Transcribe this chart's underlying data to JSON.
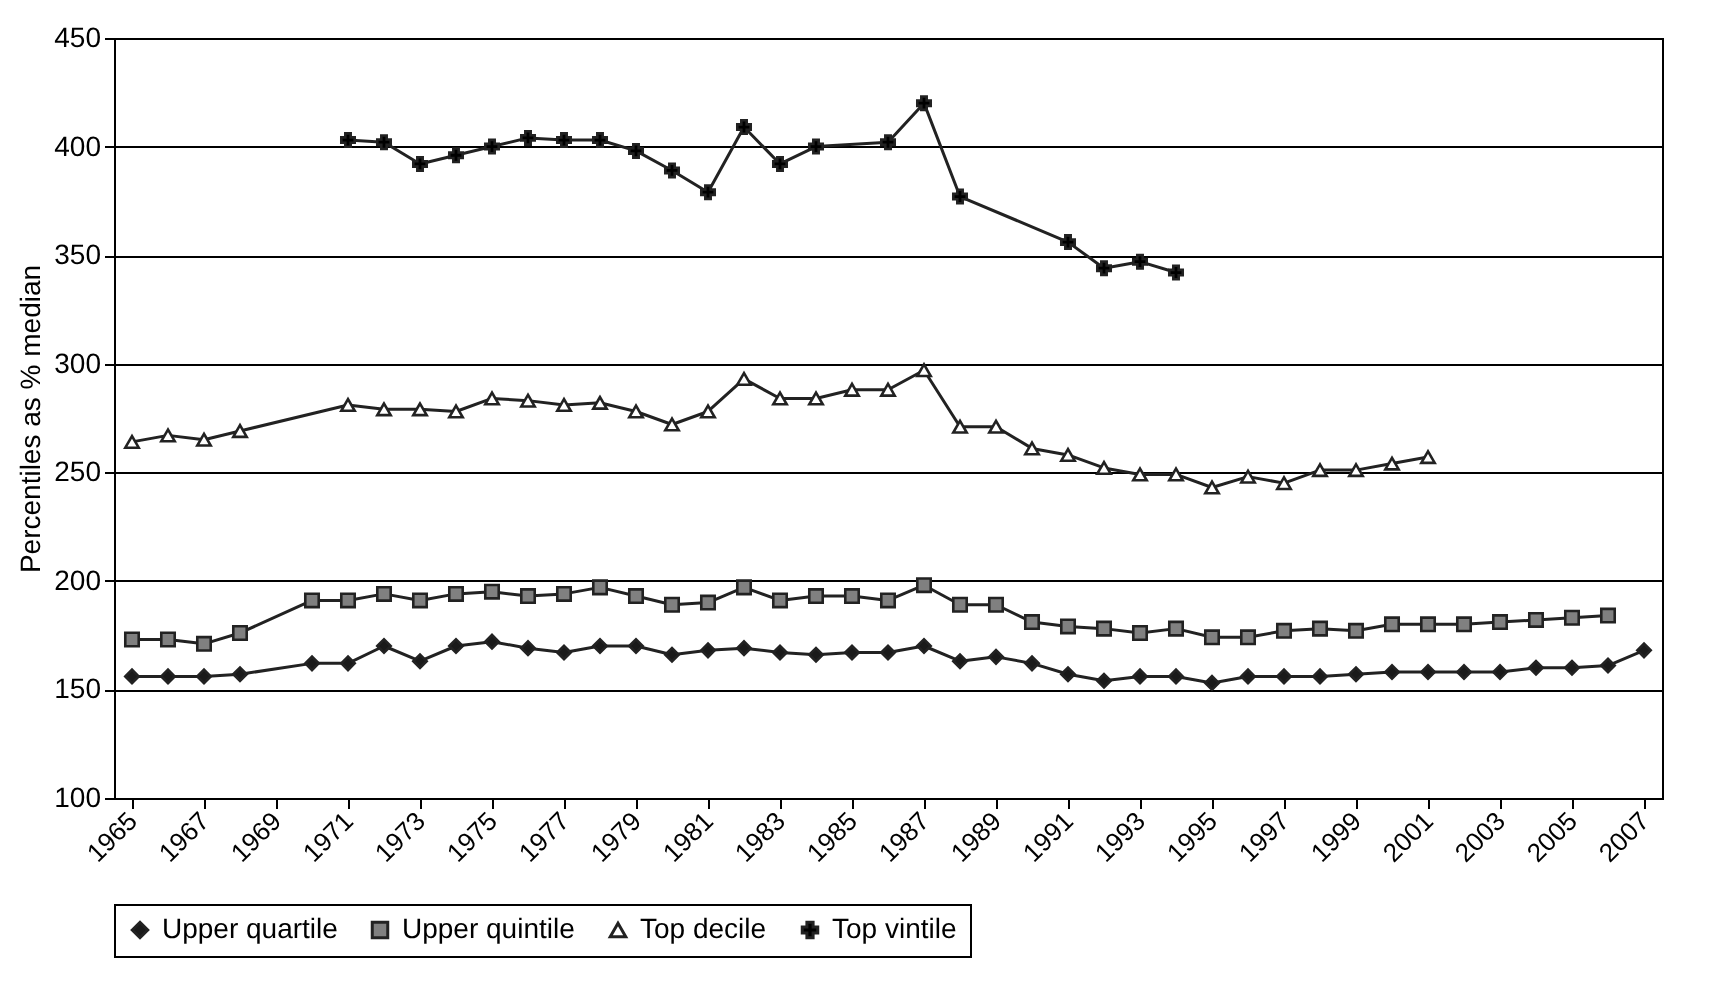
{
  "chart_data": {
    "type": "line",
    "ylabel": "Percentiles as % median",
    "xlim": [
      1964.5,
      2007.5
    ],
    "xticks": [
      1965,
      1967,
      1969,
      1971,
      1973,
      1975,
      1977,
      1979,
      1981,
      1983,
      1985,
      1987,
      1989,
      1991,
      1993,
      1995,
      1997,
      1999,
      2001,
      2003,
      2005,
      2007
    ],
    "ylim": [
      100,
      450
    ],
    "yticks": [
      100,
      150,
      200,
      250,
      300,
      350,
      400,
      450
    ],
    "grid": "y",
    "legend": "bottom",
    "series": [
      {
        "name": "Upper quartile",
        "color": "#1a1a1a",
        "marker": "diamond",
        "x": [
          1965,
          1966,
          1967,
          1968,
          1970,
          1971,
          1972,
          1973,
          1974,
          1975,
          1976,
          1977,
          1978,
          1979,
          1980,
          1981,
          1982,
          1983,
          1984,
          1985,
          1986,
          1987,
          1988,
          1989,
          1990,
          1991,
          1992,
          1993,
          1994,
          1995,
          1996,
          1997,
          1998,
          1999,
          2000,
          2001,
          2002,
          2003,
          2004,
          2005,
          2006,
          2007
        ],
        "values": [
          156,
          156,
          156,
          157,
          162,
          162,
          170,
          163,
          170,
          172,
          169,
          167,
          170,
          170,
          166,
          168,
          169,
          167,
          166,
          167,
          167,
          170,
          163,
          165,
          162,
          157,
          154,
          156,
          156,
          153,
          156,
          156,
          156,
          157,
          158,
          158,
          158,
          158,
          160,
          160,
          161,
          168
        ]
      },
      {
        "name": "Upper quintile",
        "color": "#808080",
        "marker": "square",
        "x": [
          1965,
          1966,
          1967,
          1968,
          1970,
          1971,
          1972,
          1973,
          1974,
          1975,
          1976,
          1977,
          1978,
          1979,
          1980,
          1981,
          1982,
          1983,
          1984,
          1985,
          1986,
          1987,
          1988,
          1989,
          1990,
          1991,
          1992,
          1993,
          1994,
          1995,
          1996,
          1997,
          1998,
          1999,
          2000,
          2001,
          2002,
          2003,
          2004,
          2005,
          2006
        ],
        "values": [
          173,
          173,
          171,
          176,
          191,
          191,
          194,
          191,
          194,
          195,
          193,
          194,
          197,
          193,
          189,
          190,
          197,
          191,
          193,
          193,
          191,
          198,
          189,
          189,
          181,
          179,
          178,
          176,
          178,
          174,
          174,
          177,
          178,
          177,
          180,
          180,
          180,
          181,
          182,
          183,
          184
        ]
      },
      {
        "name": "Top decile",
        "color": "#ffffff",
        "marker": "triangle",
        "x": [
          1965,
          1966,
          1967,
          1968,
          1971,
          1972,
          1973,
          1974,
          1975,
          1976,
          1977,
          1978,
          1979,
          1980,
          1981,
          1982,
          1983,
          1984,
          1985,
          1986,
          1987,
          1988,
          1989,
          1990,
          1991,
          1992,
          1993,
          1994,
          1995,
          1996,
          1997,
          1998,
          1999,
          2000,
          2001
        ],
        "values": [
          264,
          267,
          265,
          269,
          281,
          279,
          279,
          278,
          284,
          283,
          281,
          282,
          278,
          272,
          278,
          293,
          284,
          284,
          288,
          288,
          297,
          271,
          271,
          261,
          258,
          252,
          249,
          249,
          243,
          248,
          245,
          251,
          251,
          254,
          257
        ]
      },
      {
        "name": "Top vintile",
        "color": "#000000",
        "marker": "cross",
        "x": [
          1971,
          1972,
          1973,
          1974,
          1975,
          1976,
          1977,
          1978,
          1979,
          1980,
          1981,
          1982,
          1983,
          1984,
          1986,
          1987,
          1988,
          1991,
          1992,
          1993,
          1994
        ],
        "values": [
          403,
          402,
          392,
          396,
          400,
          404,
          403,
          403,
          398,
          389,
          379,
          409,
          392,
          400,
          402,
          420,
          377,
          356,
          344,
          347,
          342
        ]
      }
    ]
  }
}
